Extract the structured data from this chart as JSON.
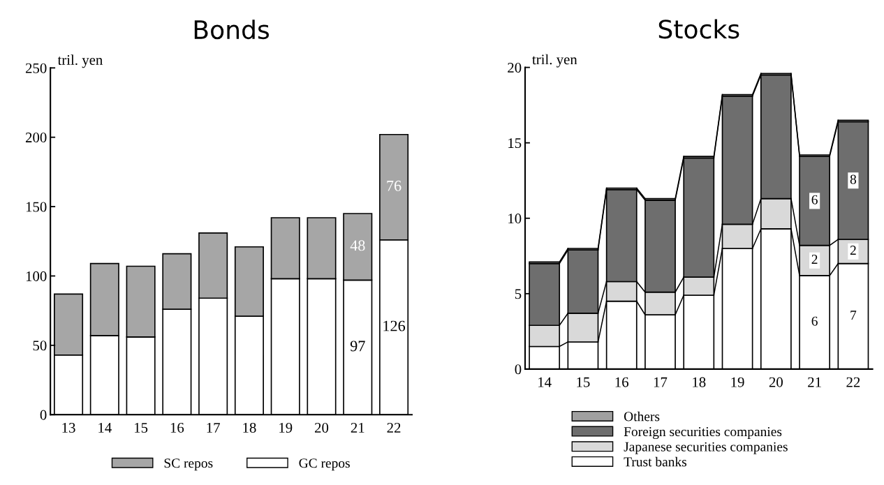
{
  "chart_data": [
    {
      "type": "bar",
      "title": "Bonds",
      "ylabel": "tril. yen",
      "categories": [
        "13",
        "14",
        "15",
        "16",
        "17",
        "18",
        "19",
        "20",
        "21",
        "22"
      ],
      "stacked": true,
      "ylim": [
        0,
        250
      ],
      "yticks": [
        0,
        50,
        100,
        150,
        200,
        250
      ],
      "grid": false,
      "legend": "bottom",
      "series": [
        {
          "name": "GC repos",
          "color": "#ffffff",
          "values": [
            43,
            57,
            56,
            76,
            84,
            71,
            98,
            98,
            97,
            126
          ],
          "value_labels": [
            null,
            null,
            null,
            null,
            null,
            null,
            null,
            null,
            "97",
            "126"
          ]
        },
        {
          "name": "SC repos",
          "color": "#a6a6a6",
          "values": [
            44,
            52,
            51,
            40,
            47,
            50,
            44,
            44,
            48,
            76
          ],
          "value_labels": [
            null,
            null,
            null,
            null,
            null,
            null,
            null,
            null,
            "48",
            "76"
          ]
        }
      ]
    },
    {
      "type": "bar",
      "title": "Stocks",
      "ylabel": "tril. yen",
      "categories": [
        "14",
        "15",
        "16",
        "17",
        "18",
        "19",
        "20",
        "21",
        "22"
      ],
      "stacked": true,
      "ylim": [
        0,
        20
      ],
      "yticks": [
        0,
        5,
        10,
        15,
        20
      ],
      "grid": false,
      "legend": "bottom",
      "series": [
        {
          "name": "Trust banks",
          "color": "#ffffff",
          "values": [
            1.5,
            1.8,
            4.5,
            3.6,
            4.9,
            8.0,
            9.3,
            6.2,
            7.0
          ],
          "value_labels": [
            null,
            null,
            null,
            null,
            null,
            null,
            null,
            "6",
            "7"
          ]
        },
        {
          "name": "Japanese securities companies",
          "color": "#d9d9d9",
          "values": [
            1.4,
            1.9,
            1.3,
            1.5,
            1.2,
            1.6,
            2.0,
            2.0,
            1.6
          ],
          "value_labels": [
            null,
            null,
            null,
            null,
            null,
            null,
            null,
            "2",
            "2"
          ]
        },
        {
          "name": "Foreign securities companies",
          "color": "#6e6e6e",
          "values": [
            4.1,
            4.2,
            6.1,
            6.1,
            7.9,
            8.5,
            8.2,
            5.9,
            7.8
          ],
          "value_labels": [
            null,
            null,
            null,
            null,
            null,
            null,
            null,
            "6",
            "8"
          ]
        },
        {
          "name": "Others",
          "color": "#a0a0a0",
          "values": [
            0.1,
            0.1,
            0.1,
            0.1,
            0.1,
            0.1,
            0.1,
            0.1,
            0.1
          ]
        }
      ]
    }
  ]
}
